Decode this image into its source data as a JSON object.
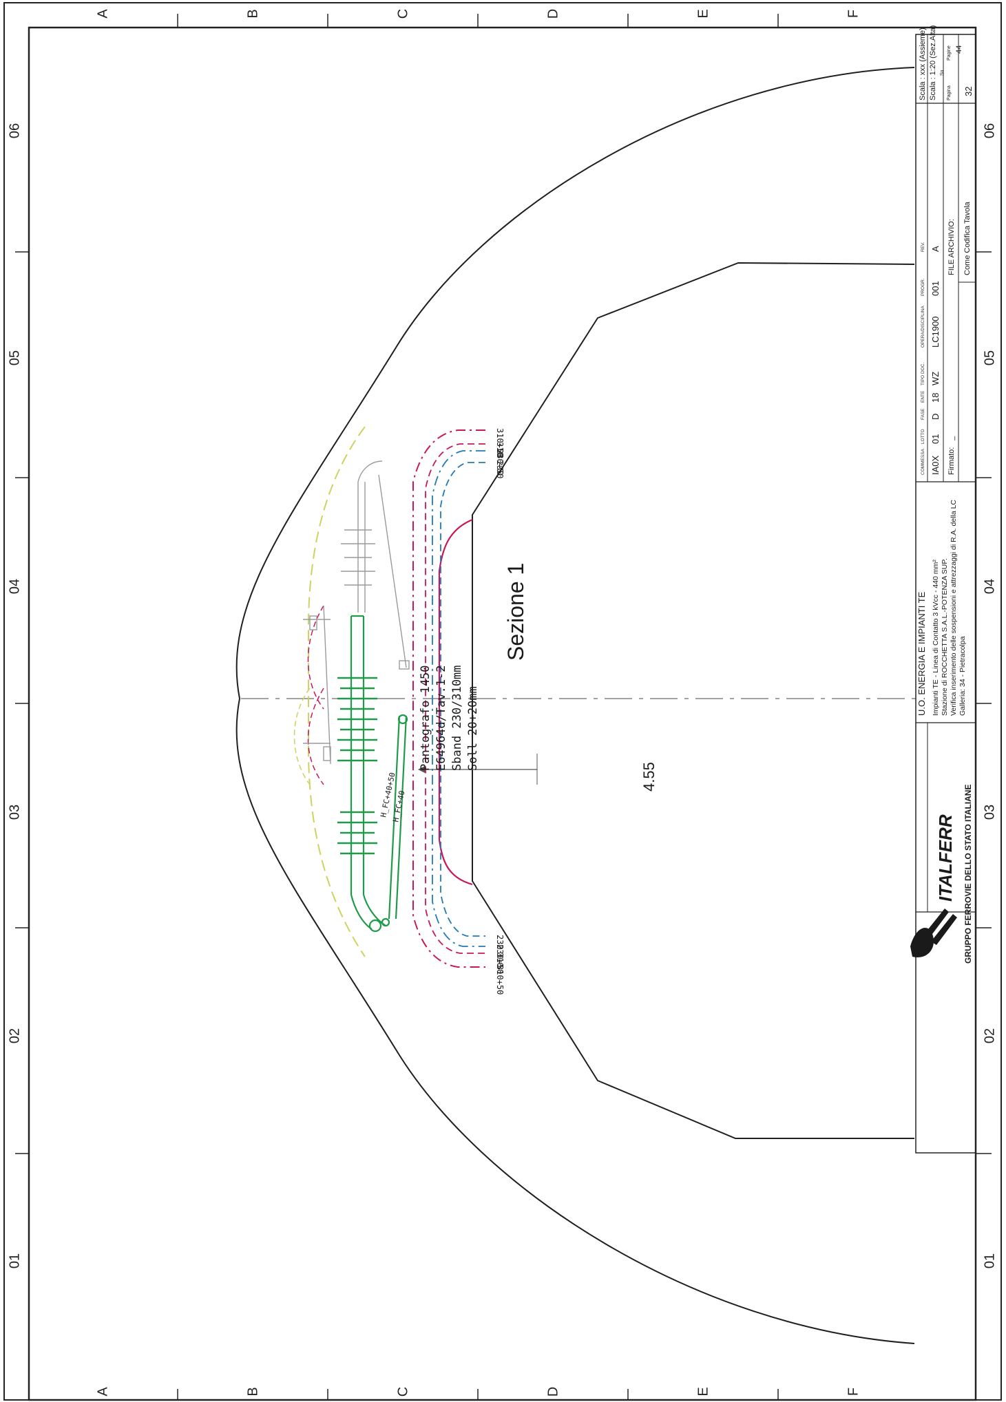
{
  "grid": {
    "rows": [
      "A",
      "B",
      "C",
      "D",
      "E",
      "F"
    ],
    "columns": [
      "01",
      "02",
      "03",
      "04",
      "05",
      "06"
    ]
  },
  "drawing": {
    "section_label": "Sezione 1",
    "height_value": "4.55",
    "pantograph": [
      "Pantografo 1450",
      "E64964d/Tav.1-2",
      "Sband 230/310mm",
      "Soll 20+20mm"
    ],
    "h_labels": [
      "H_FC+40+50",
      "H_FC+40"
    ],
    "offsets_top": [
      "310+50",
      "310",
      "230+50",
      "230"
    ],
    "offsets_bottom": [
      "230",
      "230+50",
      "310",
      "310+50"
    ],
    "colors": {
      "tunnel": "#1f1f1f",
      "green": "#1e9a48",
      "magenta": "#c8175a",
      "blue": "#1f7ab8",
      "yellow": "#cfd25e"
    }
  },
  "title_block": {
    "logo_text": "ITALFERR",
    "group_text": "GRUPPO FERROVIE DELLO STATO ITALIANE",
    "unit": "U.O. ENERGIA E IMPIANTI TE",
    "description": [
      "Impianti TE - Linea di Contatto 3 kVcc - 440 mm²",
      "Stazione di ROCCHETTA  S.A.L.-POTENZA SUP.",
      "Verifica inserimento delle sospensioni e attrezzaggi di R.A. della LC",
      "Galleria: 34 - Pietracolpa"
    ],
    "code_headers": [
      "COMMESSA",
      "LOTTO",
      "FASE",
      "ENTE",
      "TIPO DOC.",
      "OPERA/DISCIPLINA",
      "PROGR.",
      "REV."
    ],
    "code_values": [
      "IA0X",
      "01",
      "D",
      "18",
      "WZ",
      "LC1900",
      "001",
      "A"
    ],
    "firmato_label": "Firmato:",
    "firmato_value": "_",
    "file_archivio_label": "FILE ARCHIVIO:",
    "file_archivio_value": "Come Codifica Tavola",
    "scale_1": "Scala : xxx (Assieme)",
    "scale_2": "Scala : 1:20 (Sez.Alta)",
    "pagina_label": "Pagina",
    "su_label": "Su",
    "pagine_label": "Pagine",
    "pagina_value": "32",
    "pagine_value": "44"
  }
}
